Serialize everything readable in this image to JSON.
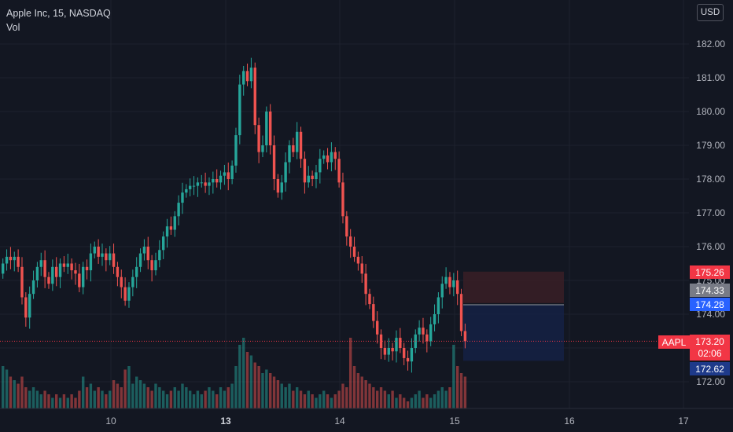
{
  "legend": {
    "title": "Apple Inc, 15, NASDAQ",
    "indicator": "Vol"
  },
  "currency": "USD",
  "price_axis": [
    "182.00",
    "181.00",
    "180.00",
    "179.00",
    "178.00",
    "177.00",
    "176.00",
    "175.00",
    "174.00",
    "173.00",
    "172.00"
  ],
  "time_axis": [
    {
      "label": "10",
      "bold": false
    },
    {
      "label": "13",
      "bold": true
    },
    {
      "label": "14",
      "bold": false
    },
    {
      "label": "15",
      "bold": false
    },
    {
      "label": "16",
      "bold": false
    },
    {
      "label": "17",
      "bold": false
    }
  ],
  "labels": {
    "stop": "175.26",
    "entry": "174.33",
    "marker": "174.28",
    "target": "172.62",
    "symbol": "AAPL",
    "last_price": "173.20",
    "countdown": "02:06"
  },
  "colors": {
    "up": "#26a69a",
    "down": "#ef5350",
    "background": "#131722",
    "stop_zone": "#3a1e26",
    "target_zone": "#152043",
    "last_price": "#f23645",
    "marker": "#2962ff"
  },
  "chart_data": {
    "type": "candlestick",
    "symbol": "Apple Inc",
    "interval": "15",
    "exchange": "NASDAQ",
    "y_range": [
      171.7,
      182.4
    ],
    "series": [
      {
        "name": "AAPL",
        "close": [
          175.5,
          175.7,
          175.6,
          175.7,
          175.4,
          174.5,
          173.9,
          174.6,
          175.0,
          175.4,
          175.6,
          175.1,
          174.9,
          175.4,
          175.1,
          175.5,
          175.4,
          175.5,
          175.3,
          175.2,
          174.8,
          175.4,
          175.3,
          175.8,
          176.0,
          175.7,
          175.8,
          175.6,
          175.8,
          175.4,
          175.1,
          174.8,
          174.4,
          174.8,
          175.1,
          175.4,
          175.8,
          176.0,
          175.6,
          175.3,
          175.6,
          175.9,
          176.3,
          176.6,
          176.5,
          176.9,
          177.3,
          177.6,
          177.7,
          177.8,
          177.8,
          177.9,
          177.9,
          177.8,
          177.9,
          178.0,
          177.9,
          178.1,
          178.2,
          178.0,
          178.4,
          179.3,
          180.8,
          181.2,
          180.9,
          181.3,
          179.6,
          178.8,
          179.0,
          180.0,
          179.0,
          178.0,
          177.6,
          177.9,
          178.5,
          179.0,
          178.8,
          179.4,
          178.6,
          177.9,
          178.1,
          178.0,
          178.2,
          178.6,
          178.7,
          178.5,
          178.8,
          178.6,
          177.9,
          176.9,
          176.3,
          176.0,
          175.7,
          175.5,
          175.2,
          174.6,
          174.3,
          173.8,
          173.4,
          173.0,
          172.8,
          173.0,
          172.9,
          173.3,
          173.0,
          172.7,
          172.6,
          173.0,
          173.4,
          173.6,
          173.4,
          173.2,
          173.7,
          174.0,
          174.5,
          174.9,
          175.1,
          174.8,
          175.0,
          174.6,
          173.5,
          173.2
        ]
      },
      {
        "name": "Volume",
        "values": [
          1.2,
          1.1,
          0.9,
          0.8,
          0.7,
          0.9,
          0.6,
          0.5,
          0.6,
          0.5,
          0.4,
          0.5,
          0.4,
          0.3,
          0.4,
          0.3,
          0.4,
          0.3,
          0.4,
          0.3,
          0.5,
          0.9,
          0.6,
          0.7,
          0.5,
          0.6,
          0.5,
          0.4,
          0.5,
          0.8,
          0.7,
          0.6,
          1.1,
          1.2,
          0.7,
          0.9,
          0.8,
          0.7,
          0.6,
          0.5,
          0.7,
          0.6,
          0.5,
          0.4,
          0.5,
          0.6,
          0.5,
          0.7,
          0.6,
          0.5,
          0.4,
          0.5,
          0.4,
          0.5,
          0.6,
          0.5,
          0.4,
          0.6,
          0.5,
          0.6,
          0.7,
          1.2,
          1.8,
          2.0,
          1.6,
          1.5,
          1.3,
          1.2,
          1.0,
          1.1,
          1.0,
          0.9,
          0.8,
          0.7,
          0.6,
          0.7,
          0.5,
          0.6,
          0.5,
          0.4,
          0.5,
          0.4,
          0.3,
          0.4,
          0.5,
          0.4,
          0.3,
          0.4,
          0.5,
          0.7,
          0.6,
          2.0,
          1.2,
          1.0,
          0.9,
          0.8,
          0.7,
          0.6,
          0.5,
          0.6,
          0.5,
          0.4,
          0.5,
          0.3,
          0.4,
          0.3,
          0.2,
          0.3,
          0.4,
          0.5,
          0.3,
          0.4,
          0.3,
          0.4,
          0.5,
          0.6,
          0.5,
          0.6,
          1.8,
          1.2,
          1.0,
          0.9
        ]
      }
    ]
  }
}
